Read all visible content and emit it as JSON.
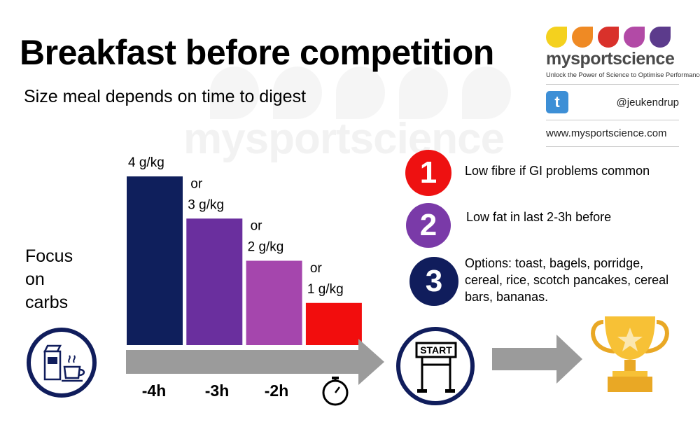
{
  "title": "Breakfast before competition",
  "subtitle": "Size meal depends on time to digest",
  "brand": {
    "name": "mysportscience",
    "tagline": "Unlock the Power of Science to Optimise Performance",
    "twitter_handle": "@jeukendrup",
    "url": "www.mysportscience.com",
    "drop_colors": [
      "#f4d11e",
      "#ef8a24",
      "#d9312b",
      "#b24aa6",
      "#5c3b8c"
    ]
  },
  "watermark": "mysportscience",
  "focus": {
    "lines": [
      "Focus",
      "on",
      "carbs"
    ]
  },
  "chart_data": {
    "type": "bar",
    "categories": [
      "-4h",
      "-3h",
      "-2h",
      ""
    ],
    "values": [
      4,
      3,
      2,
      1
    ],
    "value_labels": [
      "4 g/kg",
      "3 g/kg",
      "2 g/kg",
      "1 g/kg"
    ],
    "connector_label": "or",
    "colors": [
      "#0f1f5c",
      "#6a2f9e",
      "#a546ad",
      "#f20d0d"
    ],
    "ylim": [
      0,
      4
    ],
    "grid": false,
    "legend": "none"
  },
  "icons": {
    "breakfast": "breakfast-icon",
    "stopwatch": "stopwatch-icon",
    "start_gate": "start-gate-icon",
    "trophy": "trophy-icon",
    "twitter": "twitter-icon"
  },
  "start_label": "START",
  "tips": [
    {
      "number": "1",
      "text": "Low fibre if GI problems common",
      "color": "#ee1111"
    },
    {
      "number": "2",
      "text": "Low fat in last 2-3h before",
      "color": "#7a3aa8"
    },
    {
      "number": "3",
      "text": "Options: toast, bagels, porridge, cereal, rice, scotch pancakes, cereal bars, bananas.",
      "color": "#101d5c"
    }
  ]
}
